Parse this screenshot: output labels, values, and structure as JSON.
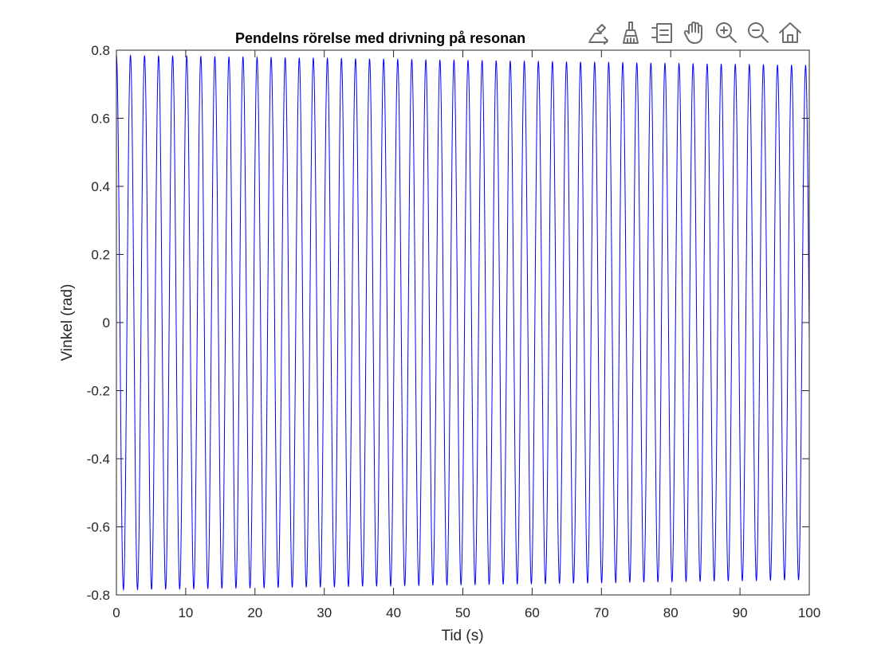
{
  "toolbar": {
    "buttons": [
      {
        "name": "export-icon"
      },
      {
        "name": "brush-icon"
      },
      {
        "name": "datatip-icon"
      },
      {
        "name": "pan-icon"
      },
      {
        "name": "zoom-in-icon"
      },
      {
        "name": "zoom-out-icon"
      },
      {
        "name": "home-icon"
      }
    ]
  },
  "chart_data": {
    "type": "line",
    "title": "Pendelns rörelse med drivning på resonan",
    "xlabel": "Tid (s)",
    "ylabel": "Vinkel (rad)",
    "xlim": [
      0,
      100
    ],
    "ylim": [
      -0.8,
      0.8
    ],
    "x_ticks": [
      "0",
      "10",
      "20",
      "30",
      "40",
      "50",
      "60",
      "70",
      "80",
      "90",
      "100"
    ],
    "y_ticks": [
      "-0.8",
      "-0.6",
      "-0.4",
      "-0.2",
      "0",
      "0.2",
      "0.4",
      "0.6",
      "0.8"
    ],
    "grid": false,
    "box": true,
    "series": [
      {
        "color": "#0000ff",
        "function": "A(t)*sin(2*pi*t/T + phi)",
        "amplitude_start": 0.785,
        "amplitude_end": 0.755,
        "period": 2.03,
        "x_start": 0,
        "x_end": 100,
        "y_start": 0.785
      }
    ]
  }
}
